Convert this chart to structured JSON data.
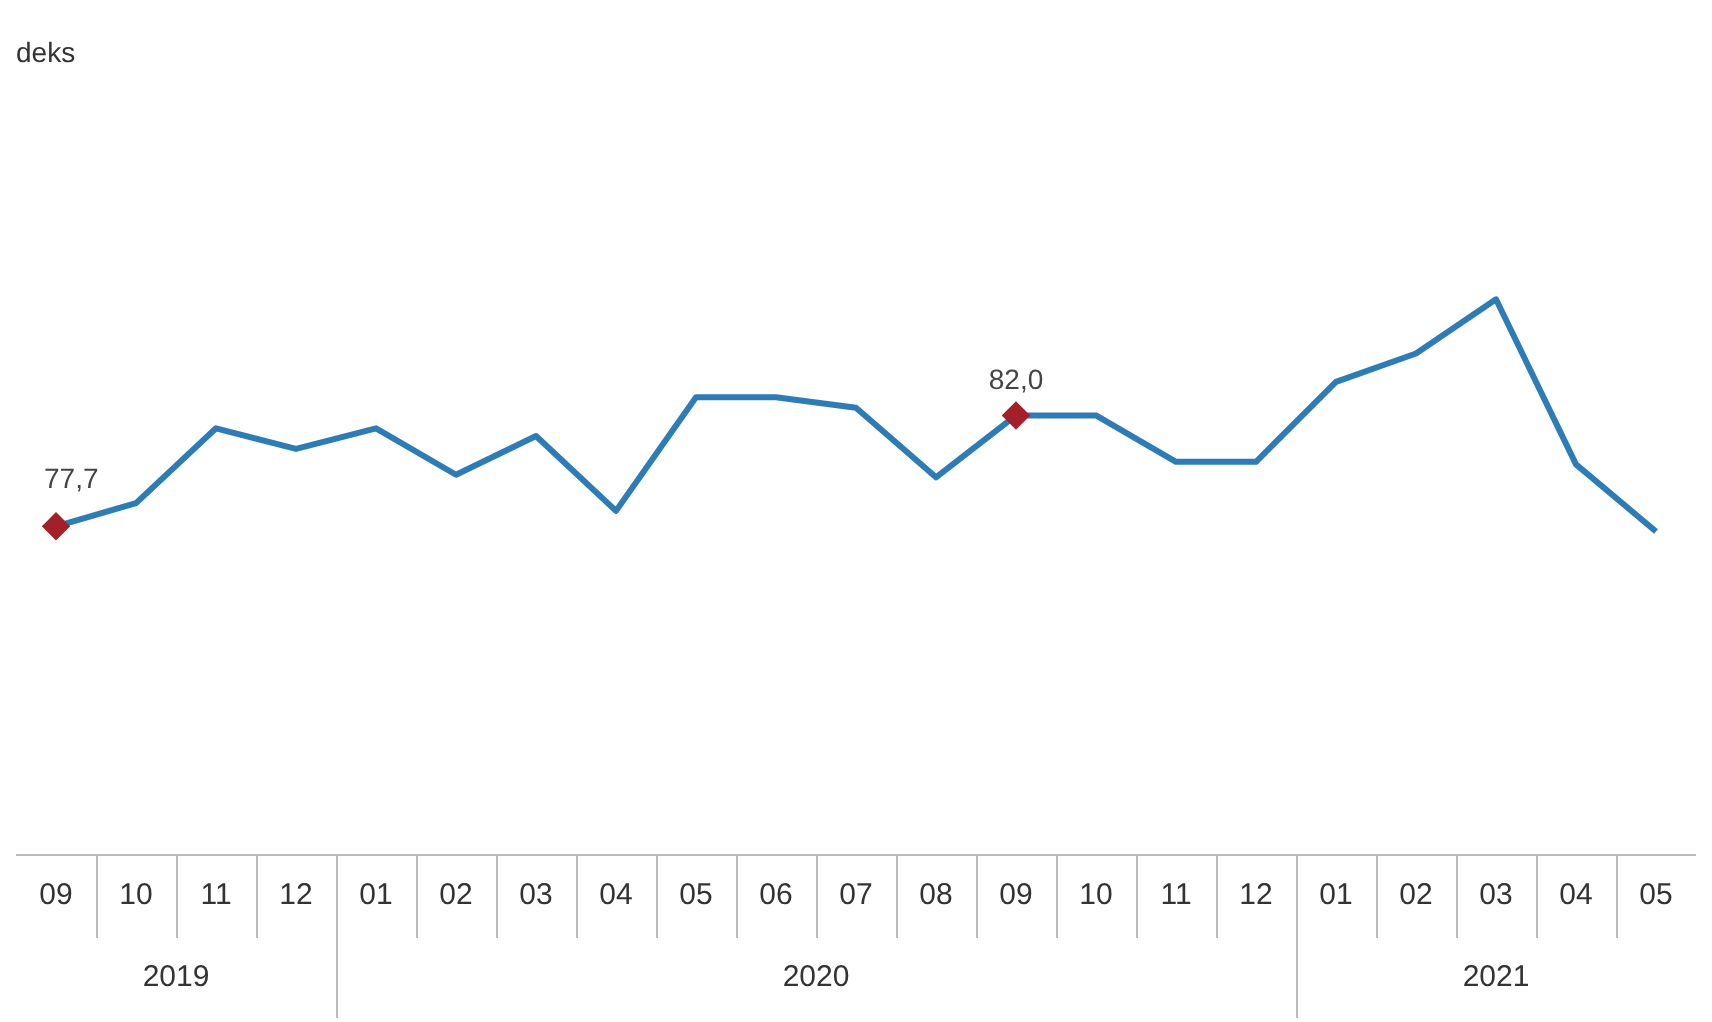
{
  "chart_data": {
    "type": "line",
    "title": "deks",
    "categories": [
      "09",
      "10",
      "11",
      "12",
      "01",
      "02",
      "03",
      "04",
      "05",
      "06",
      "07",
      "08",
      "09",
      "10",
      "11",
      "12",
      "01",
      "02",
      "03",
      "04",
      "05"
    ],
    "series": [
      {
        "color": "#2e7cb6",
        "values": [
          77.7,
          78.6,
          81.5,
          80.7,
          81.5,
          79.7,
          81.2,
          78.3,
          82.7,
          82.7,
          82.3,
          79.6,
          82.0,
          82.0,
          80.2,
          80.2,
          83.3,
          84.4,
          86.5,
          80.1,
          77.5
        ],
        "value_labels": [
          "77,7",
          null,
          null,
          null,
          null,
          null,
          null,
          null,
          null,
          null,
          null,
          null,
          "82,0",
          null,
          null,
          null,
          null,
          null,
          null,
          null,
          null
        ]
      }
    ],
    "annotations": [
      "2019",
      "2020",
      "2021"
    ],
    "legend": false,
    "tick_labels": "x"
  }
}
